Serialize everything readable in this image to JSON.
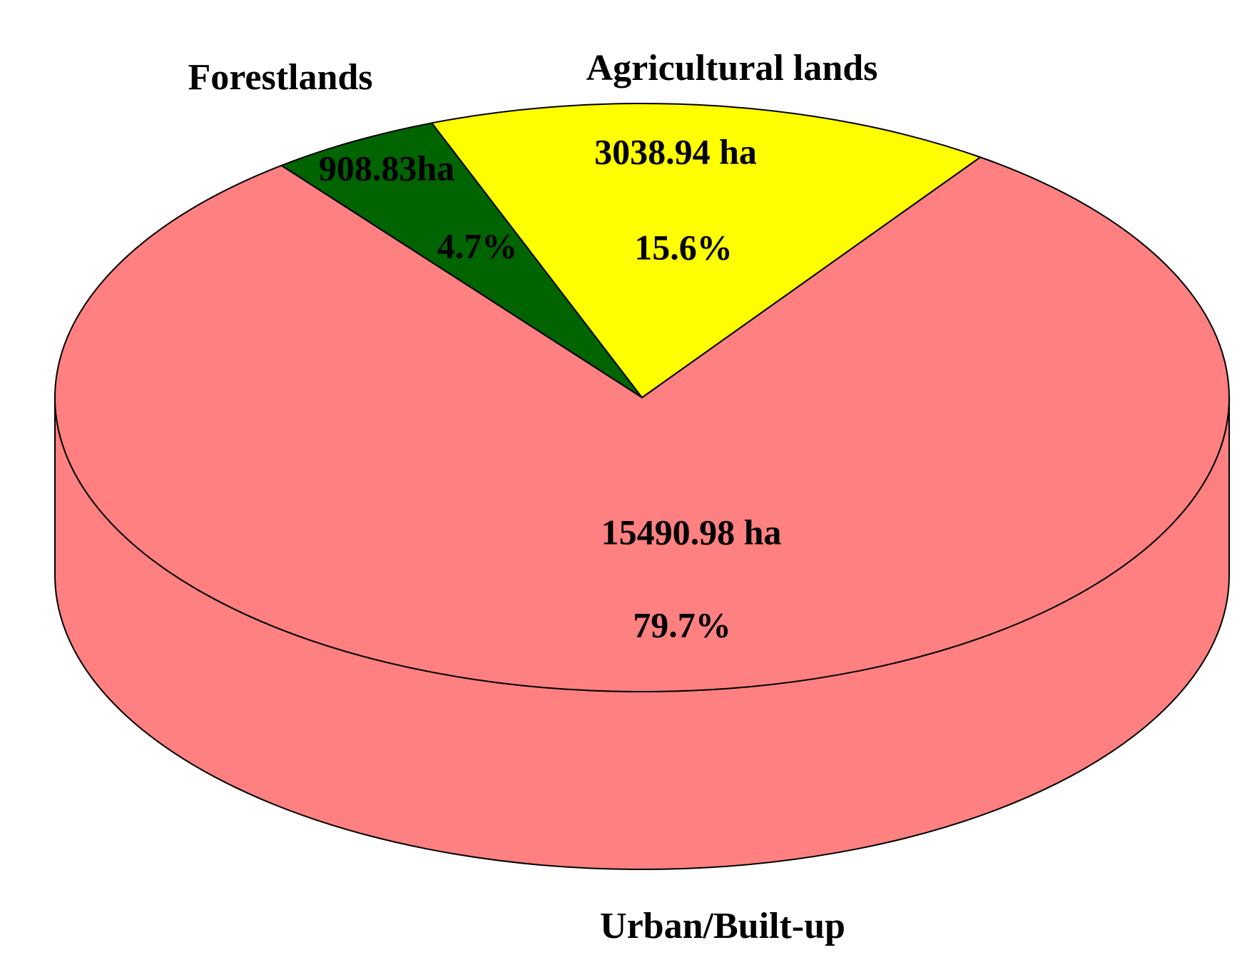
{
  "chart_data": {
    "type": "pie3d",
    "categories": [
      "Forestlands",
      "Agricultural lands",
      "Urban/Built-up"
    ],
    "values": [
      4.7,
      15.6,
      79.7
    ],
    "value_labels": [
      "4.7%",
      "15.6%",
      "79.7%"
    ],
    "areas": [
      908.83,
      3038.94,
      15490.98
    ],
    "area_labels": [
      "908.83ha",
      "3038.94 ha",
      "15490.98 ha"
    ],
    "colors": [
      "#006400",
      "#ffff00",
      "#ff8080"
    ]
  }
}
